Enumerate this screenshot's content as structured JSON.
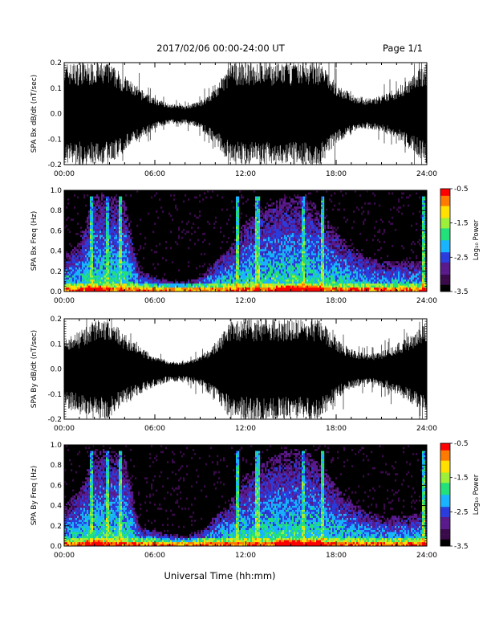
{
  "header": {
    "date_range": "2017/02/06  00:00-24:00 UT",
    "page": "Page 1/1"
  },
  "footer": {
    "xlabel": "Universal Time (hh:mm)"
  },
  "colors": {
    "waveform": "#000000",
    "colormap": [
      "#000000",
      "#3a0a4a",
      "#5a1a8c",
      "#2a3cdc",
      "#18b4ff",
      "#22e07a",
      "#9cf03a",
      "#ffe000",
      "#ff7a00",
      "#ff0000"
    ]
  },
  "chart_data": [
    {
      "type": "line",
      "ylabel": "SPA Bx dB/dt (nT/sec)",
      "xlim": [
        "00:00",
        "24:00"
      ],
      "ylim": [
        -0.2,
        0.2
      ],
      "x_ticks": [
        "00:00",
        "06:00",
        "12:00",
        "18:00",
        "24:00"
      ],
      "y_ticks": [
        "-0.2",
        "-0.1",
        "0.0",
        "0.1",
        "0.2"
      ],
      "x": [
        0,
        1,
        2,
        3,
        4,
        5,
        6,
        7,
        8,
        9,
        10,
        11,
        12,
        13,
        14,
        15,
        16,
        17,
        18,
        19,
        20,
        21,
        22,
        23,
        24
      ],
      "envelope_upper": [
        0.2,
        0.2,
        0.2,
        0.2,
        0.15,
        0.1,
        0.06,
        0.04,
        0.03,
        0.05,
        0.1,
        0.2,
        0.2,
        0.2,
        0.2,
        0.2,
        0.2,
        0.2,
        0.12,
        0.08,
        0.06,
        0.07,
        0.1,
        0.15,
        0.2
      ],
      "envelope_lower": [
        -0.2,
        -0.2,
        -0.2,
        -0.2,
        -0.15,
        -0.1,
        -0.06,
        -0.04,
        -0.04,
        -0.06,
        -0.12,
        -0.2,
        -0.2,
        -0.2,
        -0.2,
        -0.2,
        -0.2,
        -0.2,
        -0.12,
        -0.08,
        -0.06,
        -0.07,
        -0.1,
        -0.15,
        -0.2
      ]
    },
    {
      "type": "heatmap",
      "ylabel": "SPA Bx Freq (Hz)",
      "xlim": [
        "00:00",
        "24:00"
      ],
      "ylim": [
        0.0,
        1.0
      ],
      "x_ticks": [
        "00:00",
        "06:00",
        "12:00",
        "18:00",
        "24:00"
      ],
      "y_ticks": [
        "0.0",
        "0.2",
        "0.4",
        "0.6",
        "0.8",
        "1.0"
      ],
      "colorbar": {
        "label": "Log₁₀ Power",
        "ticks": [
          "-0.5",
          "-1.5",
          "-2.5",
          "-3.5"
        ],
        "range": [
          -3.5,
          -0.5
        ]
      },
      "x_hours": [
        0,
        1,
        2,
        3,
        4,
        5,
        6,
        7,
        8,
        9,
        10,
        11,
        12,
        13,
        14,
        15,
        16,
        17,
        18,
        19,
        20,
        21,
        22,
        23,
        24
      ],
      "activity_max_freq_hz": [
        0.35,
        0.5,
        0.95,
        0.95,
        0.9,
        0.2,
        0.15,
        0.1,
        0.1,
        0.15,
        0.3,
        0.45,
        0.7,
        0.8,
        0.9,
        0.95,
        0.95,
        0.8,
        0.6,
        0.45,
        0.35,
        0.3,
        0.3,
        0.3,
        0.3
      ],
      "vertical_streaks_hours": [
        1.8,
        2.9,
        3.7,
        11.5,
        12.8,
        15.8,
        17.1,
        23.8
      ]
    },
    {
      "type": "line",
      "ylabel": "SPA By dB/dt (nT/sec)",
      "xlim": [
        "00:00",
        "24:00"
      ],
      "ylim": [
        -0.2,
        0.2
      ],
      "x_ticks": [
        "00:00",
        "06:00",
        "12:00",
        "18:00",
        "24:00"
      ],
      "y_ticks": [
        "-0.2",
        "-0.1",
        "0.0",
        "0.1",
        "0.2"
      ],
      "x": [
        0,
        1,
        2,
        3,
        4,
        5,
        6,
        7,
        8,
        9,
        10,
        11,
        12,
        13,
        14,
        15,
        16,
        17,
        18,
        19,
        20,
        21,
        22,
        23,
        24
      ],
      "envelope_upper": [
        0.12,
        0.15,
        0.2,
        0.2,
        0.14,
        0.09,
        0.05,
        0.03,
        0.03,
        0.05,
        0.1,
        0.2,
        0.2,
        0.2,
        0.2,
        0.2,
        0.2,
        0.2,
        0.12,
        0.08,
        0.06,
        0.07,
        0.1,
        0.14,
        0.2
      ],
      "envelope_lower": [
        -0.15,
        -0.18,
        -0.2,
        -0.2,
        -0.14,
        -0.1,
        -0.07,
        -0.05,
        -0.05,
        -0.07,
        -0.12,
        -0.2,
        -0.2,
        -0.2,
        -0.2,
        -0.2,
        -0.2,
        -0.2,
        -0.12,
        -0.08,
        -0.06,
        -0.07,
        -0.1,
        -0.14,
        -0.2
      ]
    },
    {
      "type": "heatmap",
      "ylabel": "SPA By Freq (Hz)",
      "xlim": [
        "00:00",
        "24:00"
      ],
      "ylim": [
        0.0,
        1.0
      ],
      "x_ticks": [
        "00:00",
        "06:00",
        "12:00",
        "18:00",
        "24:00"
      ],
      "y_ticks": [
        "0.0",
        "0.2",
        "0.4",
        "0.6",
        "0.8",
        "1.0"
      ],
      "colorbar": {
        "label": "Log₁₀ Power",
        "ticks": [
          "-0.5",
          "-1.5",
          "-2.5",
          "-3.5"
        ],
        "range": [
          -3.5,
          -0.5
        ]
      },
      "x_hours": [
        0,
        1,
        2,
        3,
        4,
        5,
        6,
        7,
        8,
        9,
        10,
        11,
        12,
        13,
        14,
        15,
        16,
        17,
        18,
        19,
        20,
        21,
        22,
        23,
        24
      ],
      "activity_max_freq_hz": [
        0.4,
        0.55,
        0.95,
        0.95,
        0.9,
        0.2,
        0.15,
        0.12,
        0.1,
        0.15,
        0.3,
        0.45,
        0.7,
        0.8,
        0.9,
        0.95,
        0.95,
        0.8,
        0.6,
        0.45,
        0.35,
        0.3,
        0.3,
        0.3,
        0.35
      ],
      "vertical_streaks_hours": [
        1.8,
        2.9,
        3.7,
        11.5,
        12.8,
        15.8,
        17.1,
        23.8
      ]
    }
  ]
}
